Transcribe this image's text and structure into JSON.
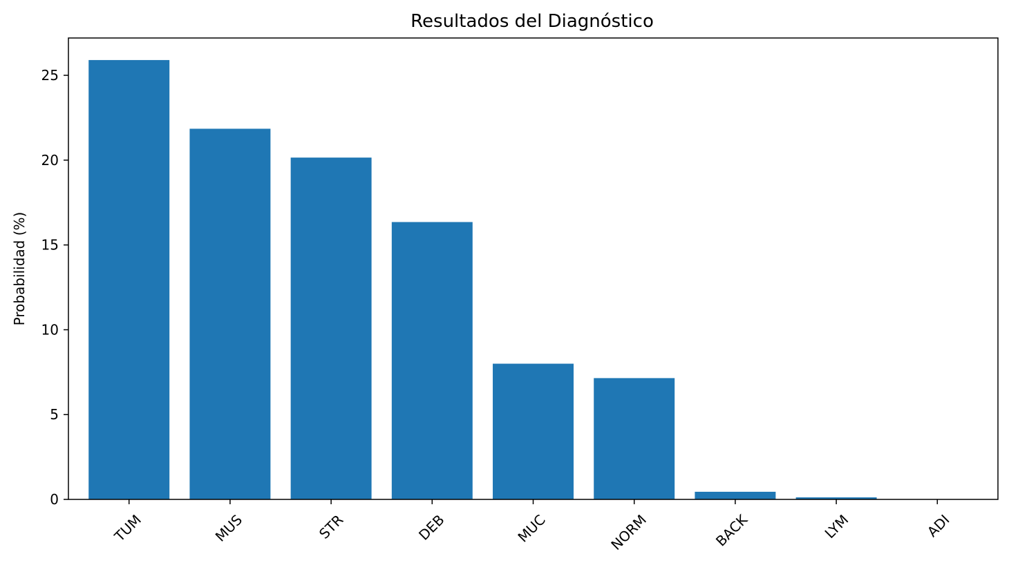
{
  "chart_data": {
    "type": "bar",
    "title": "Resultados del Diagnóstico",
    "xlabel": "",
    "ylabel": "Probabilidad (%)",
    "categories": [
      "TUM",
      "MUS",
      "STR",
      "DEB",
      "MUC",
      "NORM",
      "BACK",
      "LYM",
      "ADI"
    ],
    "values": [
      25.9,
      21.85,
      20.15,
      16.35,
      8.0,
      7.15,
      0.45,
      0.12,
      0.02
    ],
    "ylim": [
      0,
      27.2
    ],
    "yticks": [
      0,
      5,
      10,
      15,
      20,
      25
    ],
    "xtick_rotation_deg": 45,
    "grid": false,
    "legend": "none",
    "colors": {
      "bar": "#1f77b4",
      "axes": "#000000",
      "background": "#ffffff"
    }
  }
}
